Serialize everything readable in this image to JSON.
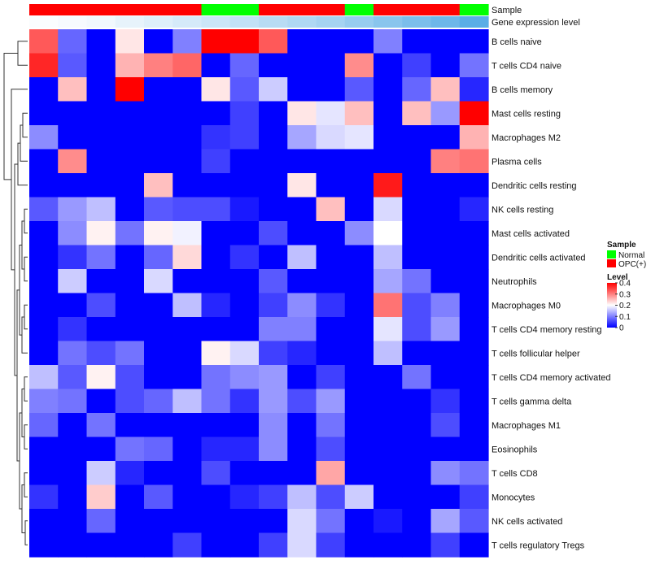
{
  "chart_data": {
    "type": "heatmap",
    "title": "",
    "tracks": {
      "sample": {
        "label": "Sample",
        "values": [
          "OPC(+)",
          "OPC(+)",
          "OPC(+)",
          "OPC(+)",
          "OPC(+)",
          "OPC(+)",
          "Normal",
          "Normal",
          "OPC(+)",
          "OPC(+)",
          "OPC(+)",
          "Normal",
          "OPC(+)",
          "OPC(+)",
          "OPC(+)",
          "Normal"
        ]
      },
      "gene_expression": {
        "label": "Gene expression level",
        "values": [
          0.02,
          0.04,
          0.06,
          0.1,
          0.14,
          0.18,
          0.22,
          0.26,
          0.3,
          0.34,
          0.38,
          0.44,
          0.5,
          0.56,
          0.62,
          0.7
        ]
      }
    },
    "rows": [
      {
        "label": "B cells naive",
        "values": [
          0.33,
          0.08,
          0,
          0.22,
          0,
          0.1,
          0.4,
          0.4,
          0.33,
          0,
          0,
          0,
          0.1,
          0,
          0,
          0
        ]
      },
      {
        "label": "T cells CD4 naive",
        "values": [
          0.37,
          0.07,
          0,
          0.26,
          0.3,
          0.32,
          0,
          0.08,
          0,
          0,
          0,
          0.29,
          0,
          0.05,
          0,
          0.09
        ]
      },
      {
        "label": "B cells memory",
        "values": [
          0,
          0.25,
          0,
          0.4,
          0,
          0,
          0.22,
          0.07,
          0.16,
          0,
          0,
          0.07,
          0,
          0.08,
          0.25,
          0.03
        ]
      },
      {
        "label": "Mast cells resting",
        "values": [
          0,
          0,
          0,
          0,
          0,
          0,
          0,
          0.05,
          0,
          0.22,
          0.18,
          0.25,
          0,
          0.25,
          0.12,
          0.4
        ]
      },
      {
        "label": "Macrophages M2",
        "values": [
          0.11,
          0,
          0,
          0,
          0,
          0,
          0.04,
          0.05,
          0,
          0.13,
          0.17,
          0.18,
          0,
          0,
          0,
          0.26
        ]
      },
      {
        "label": "Plasma cells",
        "values": [
          0,
          0.29,
          0,
          0,
          0,
          0,
          0.05,
          0,
          0,
          0,
          0,
          0,
          0,
          0,
          0.3,
          0.31
        ]
      },
      {
        "label": "Dendritic cells resting",
        "values": [
          0,
          0,
          0,
          0,
          0.25,
          0,
          0,
          0,
          0,
          0.22,
          0,
          0,
          0.38,
          0,
          0,
          0
        ]
      },
      {
        "label": "NK cells resting",
        "values": [
          0.07,
          0.12,
          0.15,
          0,
          0.07,
          0.06,
          0.06,
          0.02,
          0,
          0,
          0.25,
          0,
          0.17,
          0,
          0,
          0.03
        ]
      },
      {
        "label": "Mast cells activated",
        "values": [
          0,
          0.11,
          0.21,
          0.09,
          0.21,
          0.19,
          0,
          0,
          0.06,
          0,
          0,
          0.11,
          0.2,
          0,
          0,
          0
        ]
      },
      {
        "label": "Dendritic cells activated",
        "values": [
          0,
          0.04,
          0.09,
          0,
          0.08,
          0.23,
          0,
          0.04,
          0,
          0.15,
          0,
          0,
          0.15,
          0,
          0,
          0
        ]
      },
      {
        "label": "Neutrophils",
        "values": [
          0,
          0.16,
          0,
          0,
          0.17,
          0,
          0,
          0,
          0.07,
          0,
          0,
          0,
          0.13,
          0.09,
          0,
          0
        ]
      },
      {
        "label": "Macrophages M0",
        "values": [
          0,
          0,
          0.06,
          0,
          0,
          0.15,
          0.03,
          0,
          0.05,
          0.11,
          0.04,
          0,
          0.31,
          0.06,
          0.1,
          0
        ]
      },
      {
        "label": "T cells CD4 memory resting",
        "values": [
          0,
          0.04,
          0,
          0,
          0,
          0,
          0,
          0,
          0.1,
          0.1,
          0,
          0,
          0.18,
          0.06,
          0.12,
          0
        ]
      },
      {
        "label": "T cells follicular helper",
        "values": [
          0,
          0.09,
          0.06,
          0.09,
          0,
          0,
          0.21,
          0.17,
          0.05,
          0.03,
          0,
          0,
          0.15,
          0,
          0,
          0
        ]
      },
      {
        "label": "T cells CD4 memory activated",
        "values": [
          0.15,
          0.07,
          0.21,
          0.06,
          0,
          0,
          0.09,
          0.11,
          0.12,
          0,
          0.05,
          0,
          0,
          0.09,
          0,
          0
        ]
      },
      {
        "label": "T cells gamma delta",
        "values": [
          0.1,
          0.09,
          0,
          0.06,
          0.08,
          0.15,
          0.09,
          0.04,
          0.12,
          0.06,
          0.12,
          0,
          0,
          0,
          0.04,
          0
        ]
      },
      {
        "label": "Macrophages M1",
        "values": [
          0.08,
          0,
          0.09,
          0,
          0,
          0,
          0,
          0,
          0.11,
          0,
          0.09,
          0,
          0,
          0,
          0.06,
          0
        ]
      },
      {
        "label": "Eosinophils",
        "values": [
          0,
          0,
          0,
          0.09,
          0.08,
          0,
          0.03,
          0.03,
          0.11,
          0,
          0.06,
          0,
          0,
          0,
          0,
          0
        ]
      },
      {
        "label": "T cells CD8",
        "values": [
          0,
          0,
          0.16,
          0.03,
          0,
          0,
          0.06,
          0,
          0,
          0,
          0.27,
          0,
          0,
          0,
          0.11,
          0.09
        ]
      },
      {
        "label": "Monocytes",
        "values": [
          0.04,
          0,
          0.24,
          0,
          0.07,
          0,
          0,
          0.03,
          0.05,
          0.15,
          0.06,
          0.16,
          0,
          0,
          0,
          0.05
        ]
      },
      {
        "label": "NK cells activated",
        "values": [
          0,
          0,
          0.08,
          0,
          0,
          0,
          0,
          0,
          0,
          0.17,
          0.09,
          0,
          0.02,
          0,
          0.13,
          0.07
        ]
      },
      {
        "label": "T cells regulatory  Tregs",
        "values": [
          0,
          0,
          0,
          0,
          0,
          0.05,
          0,
          0,
          0.05,
          0.17,
          0.05,
          0,
          0,
          0,
          0.05,
          0
        ]
      }
    ],
    "legend": {
      "sample_title": "Sample",
      "sample_entries": [
        {
          "label": "Normal",
          "color": "#00ff00"
        },
        {
          "label": "OPC(+)",
          "color": "#ff0000"
        }
      ],
      "level_title": "Level",
      "level_ticks": [
        {
          "value": 0.4,
          "label": "0.4"
        },
        {
          "value": 0.3,
          "label": "0.3"
        },
        {
          "value": 0.2,
          "label": "0.2"
        },
        {
          "value": 0.1,
          "label": "0.1"
        },
        {
          "value": 0,
          "label": "0"
        }
      ]
    },
    "color_scale": {
      "low": "#0000ff",
      "mid": "#ffffff",
      "high": "#ff0000",
      "min": 0,
      "mid_value": 0.2,
      "max": 0.4
    },
    "expression_scale": {
      "low": "#ffffff",
      "high": "#5aaee6"
    },
    "dendrogram": "left rows"
  }
}
